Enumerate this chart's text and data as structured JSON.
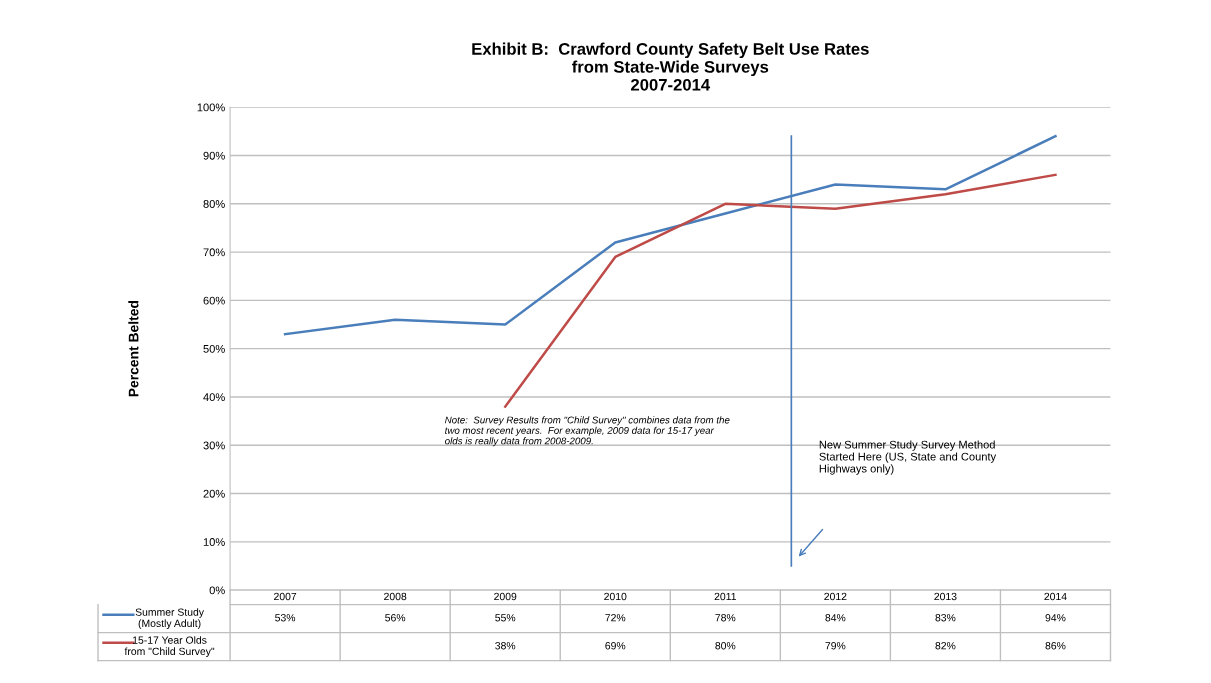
{
  "chart_data": {
    "type": "line",
    "title": "Exhibit B:  Crawford County Safety Belt Use Rates\nfrom State-Wide Surveys\n2007-2014",
    "ylabel": "Percent Belted",
    "categories": [
      "2007",
      "2008",
      "2009",
      "2010",
      "2011",
      "2012",
      "2013",
      "2014"
    ],
    "series": [
      {
        "name": "Summer Study\n(Mostly Adult)",
        "color": "#4a7ebb",
        "values": [
          53,
          56,
          55,
          72,
          78,
          84,
          83,
          94
        ],
        "value_labels": [
          "53%",
          "56%",
          "55%",
          "72%",
          "78%",
          "84%",
          "83%",
          "94%"
        ]
      },
      {
        "name": "15-17 Year Olds\nfrom \"Child Survey\"",
        "color": "#be4b48",
        "values": [
          null,
          null,
          38,
          69,
          80,
          79,
          82,
          86
        ],
        "value_labels": [
          null,
          null,
          "38%",
          "69%",
          "80%",
          "79%",
          "82%",
          "86%"
        ]
      }
    ],
    "ylim": [
      0,
      100
    ],
    "yticks": [
      {
        "value": 0,
        "label": "0%"
      },
      {
        "value": 10,
        "label": "10%"
      },
      {
        "value": 20,
        "label": "20%"
      },
      {
        "value": 30,
        "label": "30%"
      },
      {
        "value": 40,
        "label": "40%"
      },
      {
        "value": 50,
        "label": "50%"
      },
      {
        "value": 60,
        "label": "60%"
      },
      {
        "value": 70,
        "label": "70%"
      },
      {
        "value": 80,
        "label": "80%"
      },
      {
        "value": 90,
        "label": "90%"
      },
      {
        "value": 100,
        "label": "100%"
      }
    ],
    "grid": "y",
    "legend": "bottom",
    "marker": "none",
    "line_style": "solid",
    "ref_lines": [
      {
        "axis": "x",
        "value": "2012",
        "label": "New Summer Study Survey Method\nStarted Here (US, State and County\nHighways only)",
        "color": "#4a7ebb"
      }
    ],
    "annotations": [
      "Note:  Survey Results from \"Child Survey\" combines data from the\ntwo most recent years.  For example, 2009 data for 15-17 year\nolds is really data from 2008-2009."
    ]
  }
}
